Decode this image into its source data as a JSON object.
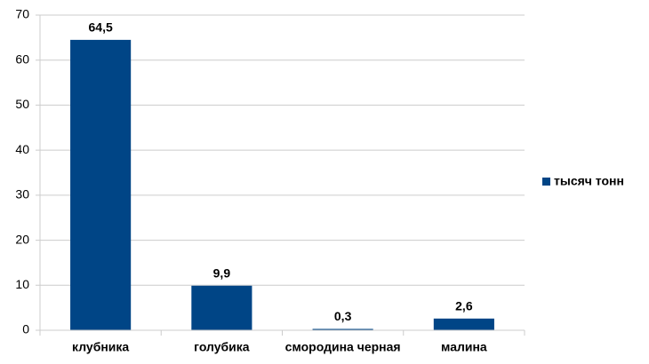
{
  "chart_data": {
    "type": "bar",
    "categories": [
      "клубника",
      "голубика",
      "смородина черная",
      "малина"
    ],
    "series": [
      {
        "name": "тысяч тонн",
        "color": "#004586",
        "values": [
          64.5,
          9.9,
          0.3,
          2.6
        ],
        "value_labels": [
          "64,5",
          "9,9",
          "0,3",
          "2,6"
        ]
      }
    ],
    "ylim": [
      0,
      70
    ],
    "yticks": [
      0,
      10,
      20,
      30,
      40,
      50,
      60,
      70
    ],
    "grid": true,
    "legend": "right"
  }
}
